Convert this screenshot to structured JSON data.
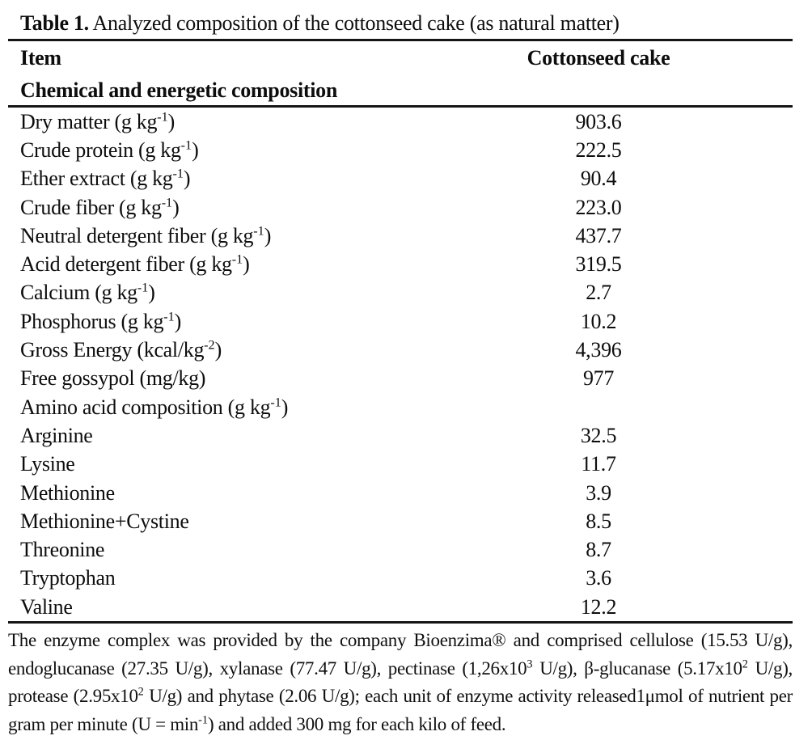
{
  "colors": {
    "background": "#ffffff",
    "text": "#0d0d0d",
    "rule": "#161616"
  },
  "table": {
    "title_label": "Table 1.",
    "title_text": " Analyzed composition of the cottonseed cake (as natural matter)",
    "columns": [
      "Item",
      "Cottonseed cake"
    ],
    "section_header": "Chemical and energetic composition",
    "rows": [
      {
        "label": "Dry matter (g kg^-1^)",
        "value": "903.6"
      },
      {
        "label": "Crude protein (g kg^-1^)",
        "value": "222.5"
      },
      {
        "label": "Ether extract (g kg^-1^)",
        "value": "90.4"
      },
      {
        "label": "Crude fiber (g kg^-1^)",
        "value": "223.0"
      },
      {
        "label": "Neutral detergent fiber (g kg^-1^)",
        "value": "437.7"
      },
      {
        "label": "Acid detergent fiber (g kg^-1^)",
        "value": "319.5"
      },
      {
        "label": "Calcium (g kg^-1^)",
        "value": "2.7"
      },
      {
        "label": "Phosphorus (g kg^-1^)",
        "value": "10.2"
      },
      {
        "label": "Gross Energy (kcal/kg^-2^)",
        "value": "4,396"
      },
      {
        "label": "Free gossypol (mg/kg)",
        "value": "977"
      },
      {
        "label": "Amino acid composition (g kg^-1^)",
        "value": ""
      },
      {
        "label": "Arginine",
        "value": "32.5"
      },
      {
        "label": "Lysine",
        "value": "11.7"
      },
      {
        "label": "Methionine",
        "value": "3.9"
      },
      {
        "label": "Methionine+Cystine",
        "value": "8.5"
      },
      {
        "label": "Threonine",
        "value": "8.7"
      },
      {
        "label": "Tryptophan",
        "value": "3.6"
      },
      {
        "label": "Valine",
        "value": "12.2"
      }
    ]
  },
  "footnote": {
    "text": "The enzyme complex was provided by the company Bioenzima® and comprised cellulose (15.53 U/g), endoglucanase (27.35 U/g), xylanase (77.47 U/g), pectinase (1,26x10^3^ U/g), β-glucanase (5.17x10^2^ U/g), protease (2.95x10^2^ U/g) and phytase (2.06 U/g); each unit of enzyme activity released1μmol of nutrient per gram per minute (U = min^-1^) and added 300 mg for each kilo of feed."
  }
}
